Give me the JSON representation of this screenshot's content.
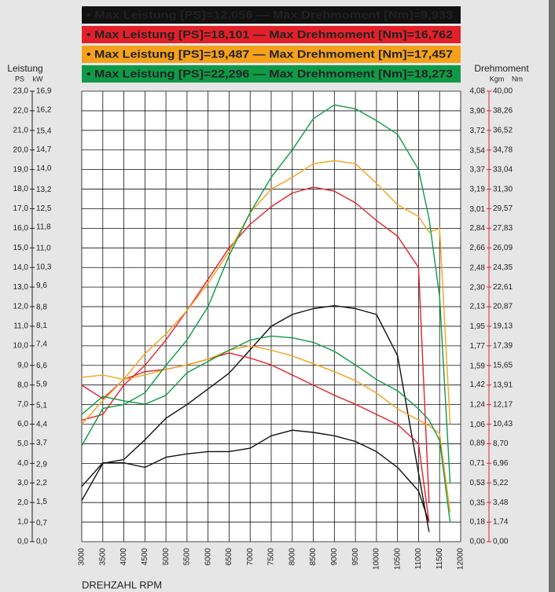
{
  "chart_data": {
    "type": "line",
    "legend": [
      "• Max Leistung [PS]=12,056 — Max Drehmoment [Nm]=9,933",
      "• Max Leistung [PS]=18,101 — Max Drehmoment [Nm]=16,762",
      "• Max Leistung [PS]=19,487 — Max Drehmoment [Nm]=17,457",
      "• Max Leistung [PS]=22,296 — Max Drehmoment [Nm]=18,273"
    ],
    "y_label": "Leistung",
    "y_unit": "PS",
    "kw_unit": "kW",
    "y2_label": "Drehmoment",
    "kgm_unit": "Kgm",
    "y2_unit": "Nm",
    "x_label": "DREHZAHL RPM",
    "x": [
      3000,
      3500,
      4000,
      4500,
      5000,
      5500,
      6000,
      6500,
      7000,
      7500,
      8000,
      8500,
      9000,
      9500,
      10000,
      10500,
      11000,
      11250,
      11500,
      11750
    ],
    "series": [
      {
        "name": "• Max Leistung [PS]=12,056 — Max Drehmoment [Nm]=9,933",
        "color": "#111111",
        "values": [
          2.1,
          4.0,
          4.2,
          5.2,
          6.3,
          7.0,
          7.8,
          8.6,
          9.8,
          11.0,
          11.6,
          11.9,
          12.05,
          11.9,
          11.6,
          9.5,
          3.5,
          0.5,
          null,
          null
        ]
      },
      {
        "color": "#111111",
        "axis": "y2",
        "values": [
          4.9,
          7.0,
          7.0,
          6.6,
          7.5,
          7.8,
          8.0,
          8.0,
          8.3,
          9.4,
          9.9,
          9.7,
          9.4,
          8.9,
          8.0,
          6.6,
          4.5,
          1.7,
          null,
          null
        ]
      },
      {
        "name": "• Max Leistung [PS]=18,101 — Max Drehmoment [Nm]=16,762",
        "color": "#e3202a",
        "values": [
          6.2,
          6.5,
          8.0,
          9.0,
          10.3,
          11.8,
          13.4,
          15.0,
          16.2,
          17.1,
          17.8,
          18.1,
          17.9,
          17.3,
          16.4,
          15.6,
          14.0,
          2.0,
          null,
          null
        ]
      },
      {
        "color": "#e3202a",
        "axis": "y2",
        "values": [
          13.9,
          12.7,
          14.4,
          15.1,
          15.3,
          15.7,
          16.2,
          16.76,
          16.3,
          15.7,
          14.8,
          13.9,
          13.0,
          12.2,
          11.3,
          10.4,
          8.7,
          1.7,
          null,
          null
        ]
      },
      {
        "name": "• Max Leistung [PS]=19,487 — Max Drehmoment [Nm]=17,457",
        "color": "#f5a11c",
        "values": [
          6.0,
          7.2,
          8.3,
          9.6,
          10.6,
          11.8,
          13.2,
          14.8,
          16.8,
          18.0,
          18.6,
          19.3,
          19.45,
          19.3,
          18.3,
          17.2,
          16.6,
          15.8,
          16.0,
          6.0
        ]
      },
      {
        "color": "#f5a11c",
        "axis": "y2",
        "values": [
          14.6,
          14.8,
          14.4,
          14.8,
          15.3,
          15.7,
          16.2,
          17.0,
          17.4,
          17.0,
          16.5,
          15.8,
          15.1,
          14.3,
          13.2,
          11.8,
          10.8,
          10.3,
          9.6,
          2.6
        ]
      },
      {
        "name": "• Max Leistung [PS]=22,296 — Max Drehmoment [Nm]=18,273",
        "color": "#0f9a48",
        "values": [
          4.9,
          6.8,
          7.0,
          7.6,
          9.0,
          10.3,
          12.0,
          14.6,
          16.8,
          18.6,
          20.0,
          21.6,
          22.3,
          22.1,
          21.5,
          20.8,
          19.0,
          16.5,
          12.5,
          3.0
        ]
      },
      {
        "color": "#0f9a48",
        "axis": "y2",
        "values": [
          11.3,
          12.9,
          12.5,
          12.2,
          13.0,
          15.0,
          16.0,
          17.0,
          17.9,
          18.26,
          18.1,
          17.7,
          16.9,
          15.7,
          14.4,
          13.4,
          11.8,
          10.8,
          9.0,
          1.7
        ]
      }
    ],
    "legend_text_colors": [
      "#ffffff",
      "#ffffff",
      "#111111",
      "#111111"
    ],
    "xlim": [
      3000,
      12000
    ],
    "xticks": [
      3000,
      3500,
      4000,
      4500,
      5000,
      5500,
      6000,
      6500,
      7000,
      7500,
      8000,
      8500,
      9000,
      9500,
      10000,
      10500,
      11000,
      11500,
      12000
    ],
    "ylim": [
      0,
      23
    ],
    "yticks": [
      {
        "value": 0,
        "label": "0,0"
      },
      {
        "value": 1,
        "label": "1,0"
      },
      {
        "value": 2,
        "label": "2,0"
      },
      {
        "value": 3,
        "label": "3,0"
      },
      {
        "value": 4,
        "label": "4,0"
      },
      {
        "value": 5,
        "label": "5,0"
      },
      {
        "value": 6,
        "label": "6,0"
      },
      {
        "value": 7,
        "label": "7,0"
      },
      {
        "value": 8,
        "label": "8,0"
      },
      {
        "value": 9,
        "label": "9,0"
      },
      {
        "value": 10,
        "label": "10,0"
      },
      {
        "value": 11,
        "label": "11,0"
      },
      {
        "value": 12,
        "label": "12,0"
      },
      {
        "value": 13,
        "label": "13,0"
      },
      {
        "value": 14,
        "label": "14,0"
      },
      {
        "value": 15,
        "label": "15,0"
      },
      {
        "value": 16,
        "label": "16,0"
      },
      {
        "value": 17,
        "label": "17,0"
      },
      {
        "value": 18,
        "label": "18,0"
      },
      {
        "value": 19,
        "label": "19,0"
      },
      {
        "value": 20,
        "label": "20,0"
      },
      {
        "value": 21,
        "label": "21,0"
      },
      {
        "value": 22,
        "label": "22,0"
      },
      {
        "value": 23,
        "label": "23,0"
      }
    ],
    "kw_lim": [
      0,
      16.9
    ],
    "kw_ticks": [
      {
        "value": 0,
        "label": "0,0"
      },
      {
        "value": 0.7,
        "label": "0,7"
      },
      {
        "value": 1.5,
        "label": "1,5"
      },
      {
        "value": 2.2,
        "label": "2,2"
      },
      {
        "value": 2.9,
        "label": "2,9"
      },
      {
        "value": 3.7,
        "label": "3,7"
      },
      {
        "value": 4.4,
        "label": "4,4"
      },
      {
        "value": 5.1,
        "label": "5,1"
      },
      {
        "value": 5.9,
        "label": "5,9"
      },
      {
        "value": 6.6,
        "label": "6,6"
      },
      {
        "value": 7.4,
        "label": "7,4"
      },
      {
        "value": 8.1,
        "label": "8,1"
      },
      {
        "value": 8.8,
        "label": "8,8"
      },
      {
        "value": 9.6,
        "label": "9,6"
      },
      {
        "value": 10.3,
        "label": "10,3"
      },
      {
        "value": 11.0,
        "label": "11,0"
      },
      {
        "value": 11.8,
        "label": "11,8"
      },
      {
        "value": 12.5,
        "label": "12,5"
      },
      {
        "value": 13.2,
        "label": "13,2"
      },
      {
        "value": 14.0,
        "label": "14,0"
      },
      {
        "value": 14.7,
        "label": "14,7"
      },
      {
        "value": 15.4,
        "label": "15,4"
      },
      {
        "value": 16.2,
        "label": "16,2"
      },
      {
        "value": 16.9,
        "label": "16,9"
      }
    ],
    "y2lim": [
      0,
      40
    ],
    "y2ticks": [
      {
        "value": 0,
        "label": "0,00"
      },
      {
        "value": 1.74,
        "label": "1,74"
      },
      {
        "value": 3.48,
        "label": "3,48"
      },
      {
        "value": 5.22,
        "label": "5,22"
      },
      {
        "value": 6.96,
        "label": "6,96"
      },
      {
        "value": 8.7,
        "label": "8,70"
      },
      {
        "value": 10.43,
        "label": "10,43"
      },
      {
        "value": 12.17,
        "label": "12,17"
      },
      {
        "value": 13.91,
        "label": "13,91"
      },
      {
        "value": 15.65,
        "label": "15,65"
      },
      {
        "value": 17.39,
        "label": "17,39"
      },
      {
        "value": 19.13,
        "label": "19,13"
      },
      {
        "value": 20.87,
        "label": "20,87"
      },
      {
        "value": 22.61,
        "label": "22,61"
      },
      {
        "value": 24.35,
        "label": "24,35"
      },
      {
        "value": 26.09,
        "label": "26,09"
      },
      {
        "value": 27.83,
        "label": "27,83"
      },
      {
        "value": 29.57,
        "label": "29,57"
      },
      {
        "value": 31.3,
        "label": "31,30"
      },
      {
        "value": 33.04,
        "label": "33,04"
      },
      {
        "value": 34.78,
        "label": "34,78"
      },
      {
        "value": 36.52,
        "label": "36,52"
      },
      {
        "value": 38.26,
        "label": "38,26"
      },
      {
        "value": 40.0,
        "label": "40,00"
      }
    ],
    "kgm_lim": [
      0,
      4.08
    ],
    "kgm_ticks": [
      {
        "value": 0,
        "label": "0,00"
      },
      {
        "value": 0.18,
        "label": "0,18"
      },
      {
        "value": 0.35,
        "label": "0,35"
      },
      {
        "value": 0.53,
        "label": "0,53"
      },
      {
        "value": 0.71,
        "label": "0,71"
      },
      {
        "value": 0.89,
        "label": "0,89"
      },
      {
        "value": 1.06,
        "label": "1,06"
      },
      {
        "value": 1.24,
        "label": "1,24"
      },
      {
        "value": 1.42,
        "label": "1,42"
      },
      {
        "value": 1.59,
        "label": "1,59"
      },
      {
        "value": 1.77,
        "label": "1,77"
      },
      {
        "value": 1.95,
        "label": "1,95"
      },
      {
        "value": 2.13,
        "label": "2,13"
      },
      {
        "value": 2.3,
        "label": "2,30"
      },
      {
        "value": 2.48,
        "label": "2,48"
      },
      {
        "value": 2.66,
        "label": "2,66"
      },
      {
        "value": 2.84,
        "label": "2,84"
      },
      {
        "value": 3.01,
        "label": "3,01"
      },
      {
        "value": 3.19,
        "label": "3,19"
      },
      {
        "value": 3.37,
        "label": "3,37"
      },
      {
        "value": 3.54,
        "label": "3,54"
      },
      {
        "value": 3.72,
        "label": "3,72"
      },
      {
        "value": 3.9,
        "label": "3,90"
      },
      {
        "value": 4.08,
        "label": "4,08"
      }
    ],
    "grid": true,
    "y2_color": "#e3202a"
  }
}
